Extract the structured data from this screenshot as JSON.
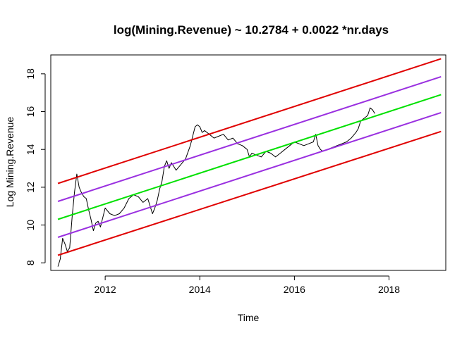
{
  "chart_data": {
    "type": "line",
    "title": "log(Mining.Revenue) ~ 10.2784 + 0.0022 *nr.days",
    "xlabel": "Time",
    "ylabel": "Log Mining.Revenue",
    "xlim": [
      2010.85,
      2019.2
    ],
    "ylim": [
      7.6,
      19.0
    ],
    "xticks": [
      2012,
      2014,
      2016,
      2018
    ],
    "xtick_labels": [
      "2012",
      "2014",
      "2016",
      "2018"
    ],
    "yticks": [
      8,
      10,
      12,
      14,
      16,
      18
    ],
    "ytick_labels": [
      "8",
      "10",
      "12",
      "14",
      "16",
      "18"
    ],
    "grid": false,
    "legend": "none",
    "series": [
      {
        "color": "#000000",
        "x": [
          2011.0,
          2011.05,
          2011.1,
          2011.15,
          2011.2,
          2011.25,
          2011.3,
          2011.35,
          2011.4,
          2011.45,
          2011.5,
          2011.55,
          2011.6,
          2011.65,
          2011.7,
          2011.75,
          2011.8,
          2011.85,
          2011.9,
          2011.95,
          2012.0,
          2012.1,
          2012.2,
          2012.3,
          2012.4,
          2012.5,
          2012.6,
          2012.7,
          2012.8,
          2012.9,
          2013.0,
          2013.05,
          2013.1,
          2013.15,
          2013.2,
          2013.25,
          2013.3,
          2013.35,
          2013.4,
          2013.5,
          2013.6,
          2013.7,
          2013.8,
          2013.85,
          2013.9,
          2013.95,
          2014.0,
          2014.05,
          2014.1,
          2014.2,
          2014.3,
          2014.4,
          2014.5,
          2014.6,
          2014.7,
          2014.8,
          2014.9,
          2015.0,
          2015.05,
          2015.1,
          2015.2,
          2015.3,
          2015.4,
          2015.5,
          2015.6,
          2015.7,
          2015.8,
          2015.9,
          2016.0,
          2016.1,
          2016.2,
          2016.3,
          2016.4,
          2016.45,
          2016.5,
          2016.55,
          2016.6,
          2016.7,
          2016.8,
          2016.9,
          2017.0,
          2017.1,
          2017.2,
          2017.3,
          2017.35,
          2017.4,
          2017.45,
          2017.5,
          2017.55,
          2017.6,
          2017.65,
          2017.7
        ],
        "y": [
          7.8,
          8.2,
          9.3,
          9.0,
          8.6,
          8.8,
          10.4,
          11.7,
          12.7,
          12.0,
          11.7,
          11.5,
          11.4,
          10.8,
          10.3,
          9.7,
          10.1,
          10.2,
          9.9,
          10.4,
          10.9,
          10.6,
          10.5,
          10.6,
          10.9,
          11.4,
          11.6,
          11.5,
          11.2,
          11.4,
          10.6,
          10.9,
          11.3,
          11.9,
          12.3,
          13.1,
          13.4,
          13.0,
          13.3,
          12.9,
          13.2,
          13.5,
          14.2,
          14.7,
          15.2,
          15.3,
          15.2,
          14.9,
          15.0,
          14.8,
          14.6,
          14.7,
          14.8,
          14.5,
          14.6,
          14.3,
          14.2,
          14.0,
          13.6,
          13.8,
          13.7,
          13.6,
          13.9,
          13.8,
          13.6,
          13.8,
          14.0,
          14.2,
          14.4,
          14.3,
          14.2,
          14.3,
          14.4,
          14.8,
          14.2,
          14.0,
          13.9,
          14.0,
          14.1,
          14.2,
          14.3,
          14.4,
          14.6,
          14.9,
          15.1,
          15.5,
          15.6,
          15.7,
          15.8,
          16.2,
          16.1,
          15.9
        ]
      },
      {
        "color": "#e00000",
        "x": [
          2011.0,
          2019.1
        ],
        "y": [
          12.2,
          18.8
        ]
      },
      {
        "color": "#9a30e0",
        "x": [
          2011.0,
          2019.1
        ],
        "y": [
          11.25,
          17.85
        ]
      },
      {
        "color": "#00e000",
        "x": [
          2011.0,
          2019.1
        ],
        "y": [
          10.3,
          16.9
        ]
      },
      {
        "color": "#9a30e0",
        "x": [
          2011.0,
          2019.1
        ],
        "y": [
          9.35,
          15.95
        ]
      },
      {
        "color": "#e00000",
        "x": [
          2011.0,
          2019.1
        ],
        "y": [
          8.4,
          14.95
        ]
      }
    ]
  }
}
